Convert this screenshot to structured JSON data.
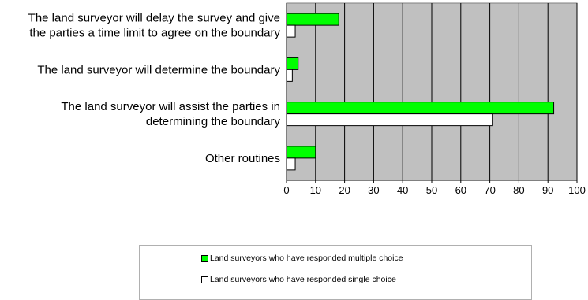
{
  "chart_data": {
    "type": "bar",
    "orientation": "horizontal",
    "categories": [
      [
        "The land surveyor will delay the survey and give",
        "the parties a time limit to agree on the boundary"
      ],
      [
        "The land surveyor will determine the boundary"
      ],
      [
        "The land surveyor will assist the parties in",
        "determining the boundary"
      ],
      [
        "Other routines"
      ]
    ],
    "series": [
      {
        "name": "Land surveyors who have responded multiple choice",
        "color": "#00ff00",
        "values": [
          18,
          4,
          92,
          10
        ]
      },
      {
        "name": "Land surveyors who have responded single choice",
        "color": "#ffffff",
        "values": [
          3,
          2,
          71,
          3
        ]
      }
    ],
    "xlim": [
      0,
      100
    ],
    "xticks": [
      "0",
      "10",
      "20",
      "30",
      "40",
      "50",
      "60",
      "70",
      "80",
      "90",
      "100"
    ],
    "grid": true,
    "plot_background": "#c0c0c0",
    "legend_position": "bottom"
  }
}
